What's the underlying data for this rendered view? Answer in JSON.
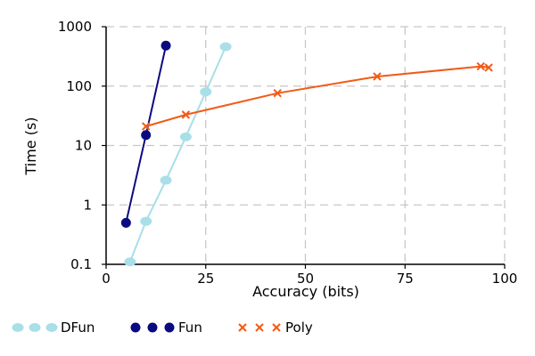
{
  "chart_data": {
    "type": "scatter",
    "title": "",
    "xlabel": "Accuracy (bits)",
    "ylabel": "Time (s)",
    "xlim": [
      0,
      100
    ],
    "ylim": [
      0.1,
      1000
    ],
    "yscale": "log",
    "grid": true,
    "legend_position": "bottom",
    "x_ticks": [
      "0",
      "25",
      "50",
      "75",
      "100"
    ],
    "y_ticks": [
      "0.1",
      "1",
      "10",
      "100",
      "1000"
    ],
    "series": [
      {
        "name": "DFun",
        "color": "#a8dfe8",
        "marker": "ellipse",
        "points": [
          {
            "x": 6,
            "y": 0.11
          },
          {
            "x": 10,
            "y": 0.53
          },
          {
            "x": 15,
            "y": 2.6
          },
          {
            "x": 20,
            "y": 14
          },
          {
            "x": 25,
            "y": 80
          },
          {
            "x": 30,
            "y": 460
          }
        ]
      },
      {
        "name": "Fun",
        "color": "#0a0a80",
        "marker": "circle",
        "points": [
          {
            "x": 5,
            "y": 0.5
          },
          {
            "x": 10,
            "y": 15
          },
          {
            "x": 15,
            "y": 480
          }
        ]
      },
      {
        "name": "Poly",
        "color": "#f25a16",
        "marker": "x",
        "points": [
          {
            "x": 10,
            "y": 21
          },
          {
            "x": 20,
            "y": 33
          },
          {
            "x": 43,
            "y": 76
          },
          {
            "x": 68,
            "y": 145
          },
          {
            "x": 94,
            "y": 215
          },
          {
            "x": 96,
            "y": 205
          }
        ]
      }
    ]
  }
}
